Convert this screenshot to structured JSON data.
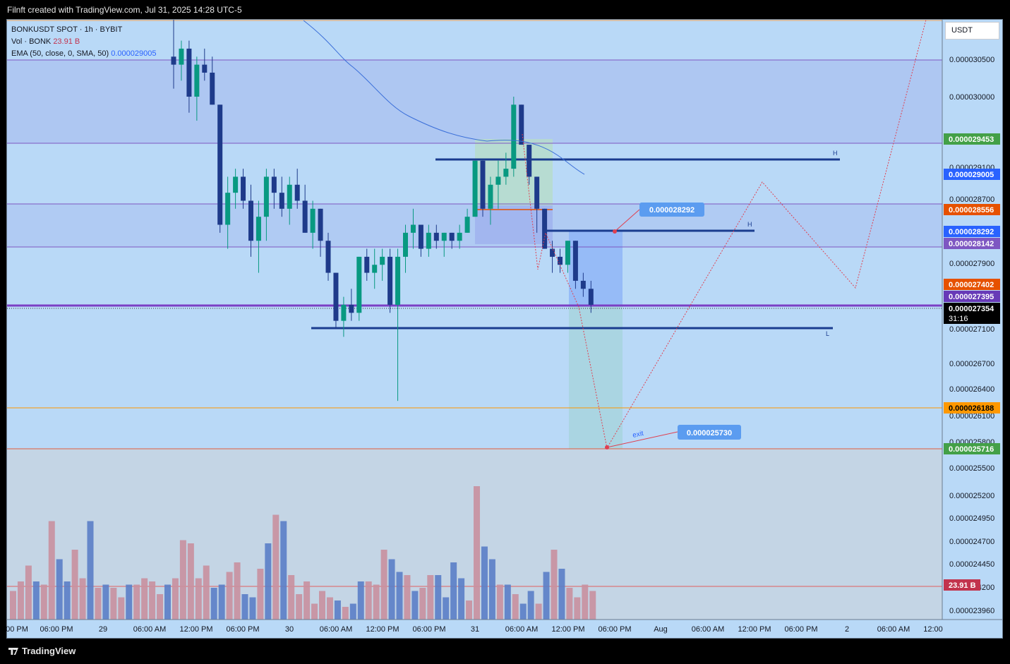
{
  "header": {
    "title": "Filnft created with TradingView.com, Jul 31, 2025 14:28 UTC-5"
  },
  "legend": {
    "symbol_line": "BONKUSDT SPOT · 1h · BYBIT",
    "vol_label": "Vol · BONK",
    "vol_value": "23.91 B",
    "ema_label": "EMA (50, close, 0, SMA, 50)",
    "ema_value": "0.000029005"
  },
  "currency_button": "USDT",
  "footer": {
    "brand": "TradingView"
  },
  "colors": {
    "bull": "#089981",
    "bear": "#1e3a8a",
    "ema": "#2962ff",
    "bull_vol": "#c9909f",
    "bear_vol": "#5b7ec7",
    "background": "#b9d9f7"
  },
  "chart_data": {
    "type": "candlestick",
    "symbol": "BONKUSDT",
    "interval": "1h",
    "exchange": "BYBIT",
    "y_axis_ticks": [
      "0.000030500",
      "0.000030000",
      "0.000029100",
      "0.000028700",
      "0.000027900",
      "0.000027100",
      "0.000026700",
      "0.000026400",
      "0.000026100",
      "0.000025800",
      "0.000025500",
      "0.000025200",
      "0.000024950",
      "0.000024700",
      "0.000024450",
      "0.000024200",
      "0.000023960"
    ],
    "x_axis_ticks": [
      "00 PM",
      "06:00 PM",
      "29",
      "06:00 AM",
      "12:00 PM",
      "06:00 PM",
      "30",
      "06:00 AM",
      "12:00 PM",
      "06:00 PM",
      "31",
      "06:00 AM",
      "12:00 PM",
      "06:00 PM",
      "Aug",
      "06:00 AM",
      "12:00 PM",
      "06:00 PM",
      "2",
      "06:00 AM",
      "12:00"
    ],
    "price_badges": [
      {
        "value": "0.000029453",
        "color": "#43a047"
      },
      {
        "value": "0.000029005",
        "color": "#2962ff"
      },
      {
        "value": "0.000028556",
        "color": "#e65100"
      },
      {
        "value": "0.000028292",
        "color": "#2962ff"
      },
      {
        "value": "0.000028142",
        "color": "#7e57c2"
      },
      {
        "value": "0.000027402",
        "color": "#e65100"
      },
      {
        "value": "0.000027395",
        "color": "#673ab7"
      },
      {
        "value": "0.000027354",
        "color": "#000000",
        "sub": "31:16"
      },
      {
        "value": "0.000026188",
        "color": "#ff9800",
        "text": "#000000"
      },
      {
        "value": "0.000025716",
        "color": "#43a047"
      },
      {
        "value": "23.91 B",
        "color": "#c2334d"
      }
    ],
    "annotations": {
      "target_label": "0.000028292",
      "exit_label": "0.000025730",
      "exit_text": "exit",
      "h_label_1": "H",
      "h_label_2": "H",
      "l_label": "L"
    },
    "candles": [
      [
        3.05e-05,
        3.1e-05,
        3.01e-05,
        3.04e-05
      ],
      [
        3.04e-05,
        3.07e-05,
        3.02e-05,
        3.06e-05
      ],
      [
        3.06e-05,
        3.07e-05,
        2.98e-05,
        3e-05
      ],
      [
        3e-05,
        3.05e-05,
        2.97e-05,
        3.04e-05
      ],
      [
        3.04e-05,
        3.06e-05,
        3.02e-05,
        3.03e-05
      ],
      [
        3.03e-05,
        3.05e-05,
        2.99e-05,
        2.99e-05
      ],
      [
        2.99e-05,
        2.99e-05,
        2.83e-05,
        2.84e-05
      ],
      [
        2.84e-05,
        2.9e-05,
        2.81e-05,
        2.88e-05
      ],
      [
        2.88e-05,
        2.91e-05,
        2.86e-05,
        2.9e-05
      ],
      [
        2.9e-05,
        2.91e-05,
        2.86e-05,
        2.87e-05
      ],
      [
        2.87e-05,
        2.89e-05,
        2.8e-05,
        2.82e-05
      ],
      [
        2.82e-05,
        2.87e-05,
        2.78e-05,
        2.85e-05
      ],
      [
        2.85e-05,
        2.91e-05,
        2.82e-05,
        2.9e-05
      ],
      [
        2.9e-05,
        2.91e-05,
        2.86e-05,
        2.88e-05
      ],
      [
        2.88e-05,
        2.9e-05,
        2.85e-05,
        2.86e-05
      ],
      [
        2.86e-05,
        2.9e-05,
        2.84e-05,
        2.89e-05
      ],
      [
        2.89e-05,
        2.91e-05,
        2.86e-05,
        2.87e-05
      ],
      [
        2.87e-05,
        2.89e-05,
        2.83e-05,
        2.83e-05
      ],
      [
        2.83e-05,
        2.87e-05,
        2.81e-05,
        2.86e-05
      ],
      [
        2.86e-05,
        2.86e-05,
        2.8e-05,
        2.82e-05
      ],
      [
        2.82e-05,
        2.83e-05,
        2.77e-05,
        2.78e-05
      ],
      [
        2.78e-05,
        2.78e-05,
        2.71e-05,
        2.72e-05
      ],
      [
        2.72e-05,
        2.75e-05,
        2.7e-05,
        2.74e-05
      ],
      [
        2.74e-05,
        2.76e-05,
        2.72e-05,
        2.73e-05
      ],
      [
        2.73e-05,
        2.8e-05,
        2.72e-05,
        2.8e-05
      ],
      [
        2.8e-05,
        2.81e-05,
        2.77e-05,
        2.78e-05
      ],
      [
        2.78e-05,
        2.81e-05,
        2.76e-05,
        2.79e-05
      ],
      [
        2.79e-05,
        2.81e-05,
        2.77e-05,
        2.8e-05
      ],
      [
        2.8e-05,
        2.81e-05,
        2.73e-05,
        2.74e-05
      ],
      [
        2.74e-05,
        2.81e-05,
        2.62e-05,
        2.8e-05
      ],
      [
        2.8e-05,
        2.84e-05,
        2.78e-05,
        2.83e-05
      ],
      [
        2.83e-05,
        2.86e-05,
        2.81e-05,
        2.84e-05
      ],
      [
        2.84e-05,
        2.84e-05,
        2.8e-05,
        2.81e-05
      ],
      [
        2.81e-05,
        2.84e-05,
        2.8e-05,
        2.83e-05
      ],
      [
        2.83e-05,
        2.84e-05,
        2.81e-05,
        2.82e-05
      ],
      [
        2.82e-05,
        2.83e-05,
        2.8e-05,
        2.83e-05
      ],
      [
        2.83e-05,
        2.83e-05,
        2.81e-05,
        2.82e-05
      ],
      [
        2.82e-05,
        2.84e-05,
        2.81e-05,
        2.83e-05
      ],
      [
        2.83e-05,
        2.86e-05,
        2.83e-05,
        2.85e-05
      ],
      [
        2.85e-05,
        2.92e-05,
        2.85e-05,
        2.92e-05
      ],
      [
        2.92e-05,
        2.92e-05,
        2.85e-05,
        2.86e-05
      ],
      [
        2.86e-05,
        2.9e-05,
        2.84e-05,
        2.89e-05
      ],
      [
        2.89e-05,
        2.92e-05,
        2.86e-05,
        2.9e-05
      ],
      [
        2.9e-05,
        2.93e-05,
        2.89e-05,
        2.91e-05
      ],
      [
        2.91e-05,
        3e-05,
        2.9e-05,
        2.99e-05
      ],
      [
        2.99e-05,
        2.99e-05,
        2.94e-05,
        2.94e-05
      ],
      [
        2.94e-05,
        2.94e-05,
        2.89e-05,
        2.9e-05
      ],
      [
        2.9e-05,
        2.9e-05,
        2.83e-05,
        2.86e-05
      ],
      [
        2.86e-05,
        2.86e-05,
        2.81e-05,
        2.81e-05
      ],
      [
        2.81e-05,
        2.82e-05,
        2.78e-05,
        2.8e-05
      ],
      [
        2.8e-05,
        2.81e-05,
        2.78e-05,
        2.79e-05
      ],
      [
        2.79e-05,
        2.82e-05,
        2.78e-05,
        2.82e-05
      ],
      [
        2.82e-05,
        2.82e-05,
        2.76e-05,
        2.77e-05
      ],
      [
        2.77e-05,
        2.78e-05,
        2.75e-05,
        2.76e-05
      ],
      [
        2.76e-05,
        2.77e-05,
        2.73e-05,
        2.74e-05
      ]
    ],
    "volume_ticks_per_candle": true
  }
}
